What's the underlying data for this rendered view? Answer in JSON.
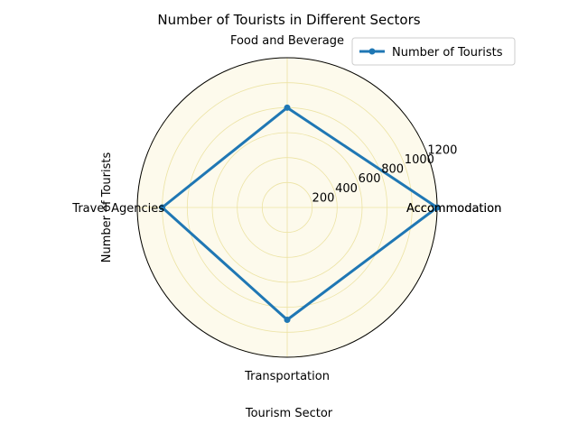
{
  "chart_data": {
    "type": "radar",
    "title": "Number of Tourists in Different Sectors",
    "xlabel": "Tourism Sector",
    "ylabel": "Number of Tourists",
    "categories": [
      "Accommodation",
      "Food and Beverage",
      "Travel Agencies",
      "Transportation"
    ],
    "closing_label": "Accommodation",
    "series": [
      {
        "name": "Number of Tourists",
        "values": [
          1200,
          800,
          1000,
          900
        ]
      }
    ],
    "rlim": [
      0,
      1200
    ],
    "rticks": [
      200,
      400,
      600,
      800,
      1000,
      1200
    ],
    "rtick_labels": [
      "200",
      "400",
      "600",
      "800",
      "1000",
      "1200"
    ],
    "grid": true,
    "legend_position": "top-right",
    "colors": {
      "series": "#1f77b4",
      "plot_background": "#fdfaec",
      "grid": "#ece3a4",
      "frame": "#000000"
    }
  }
}
